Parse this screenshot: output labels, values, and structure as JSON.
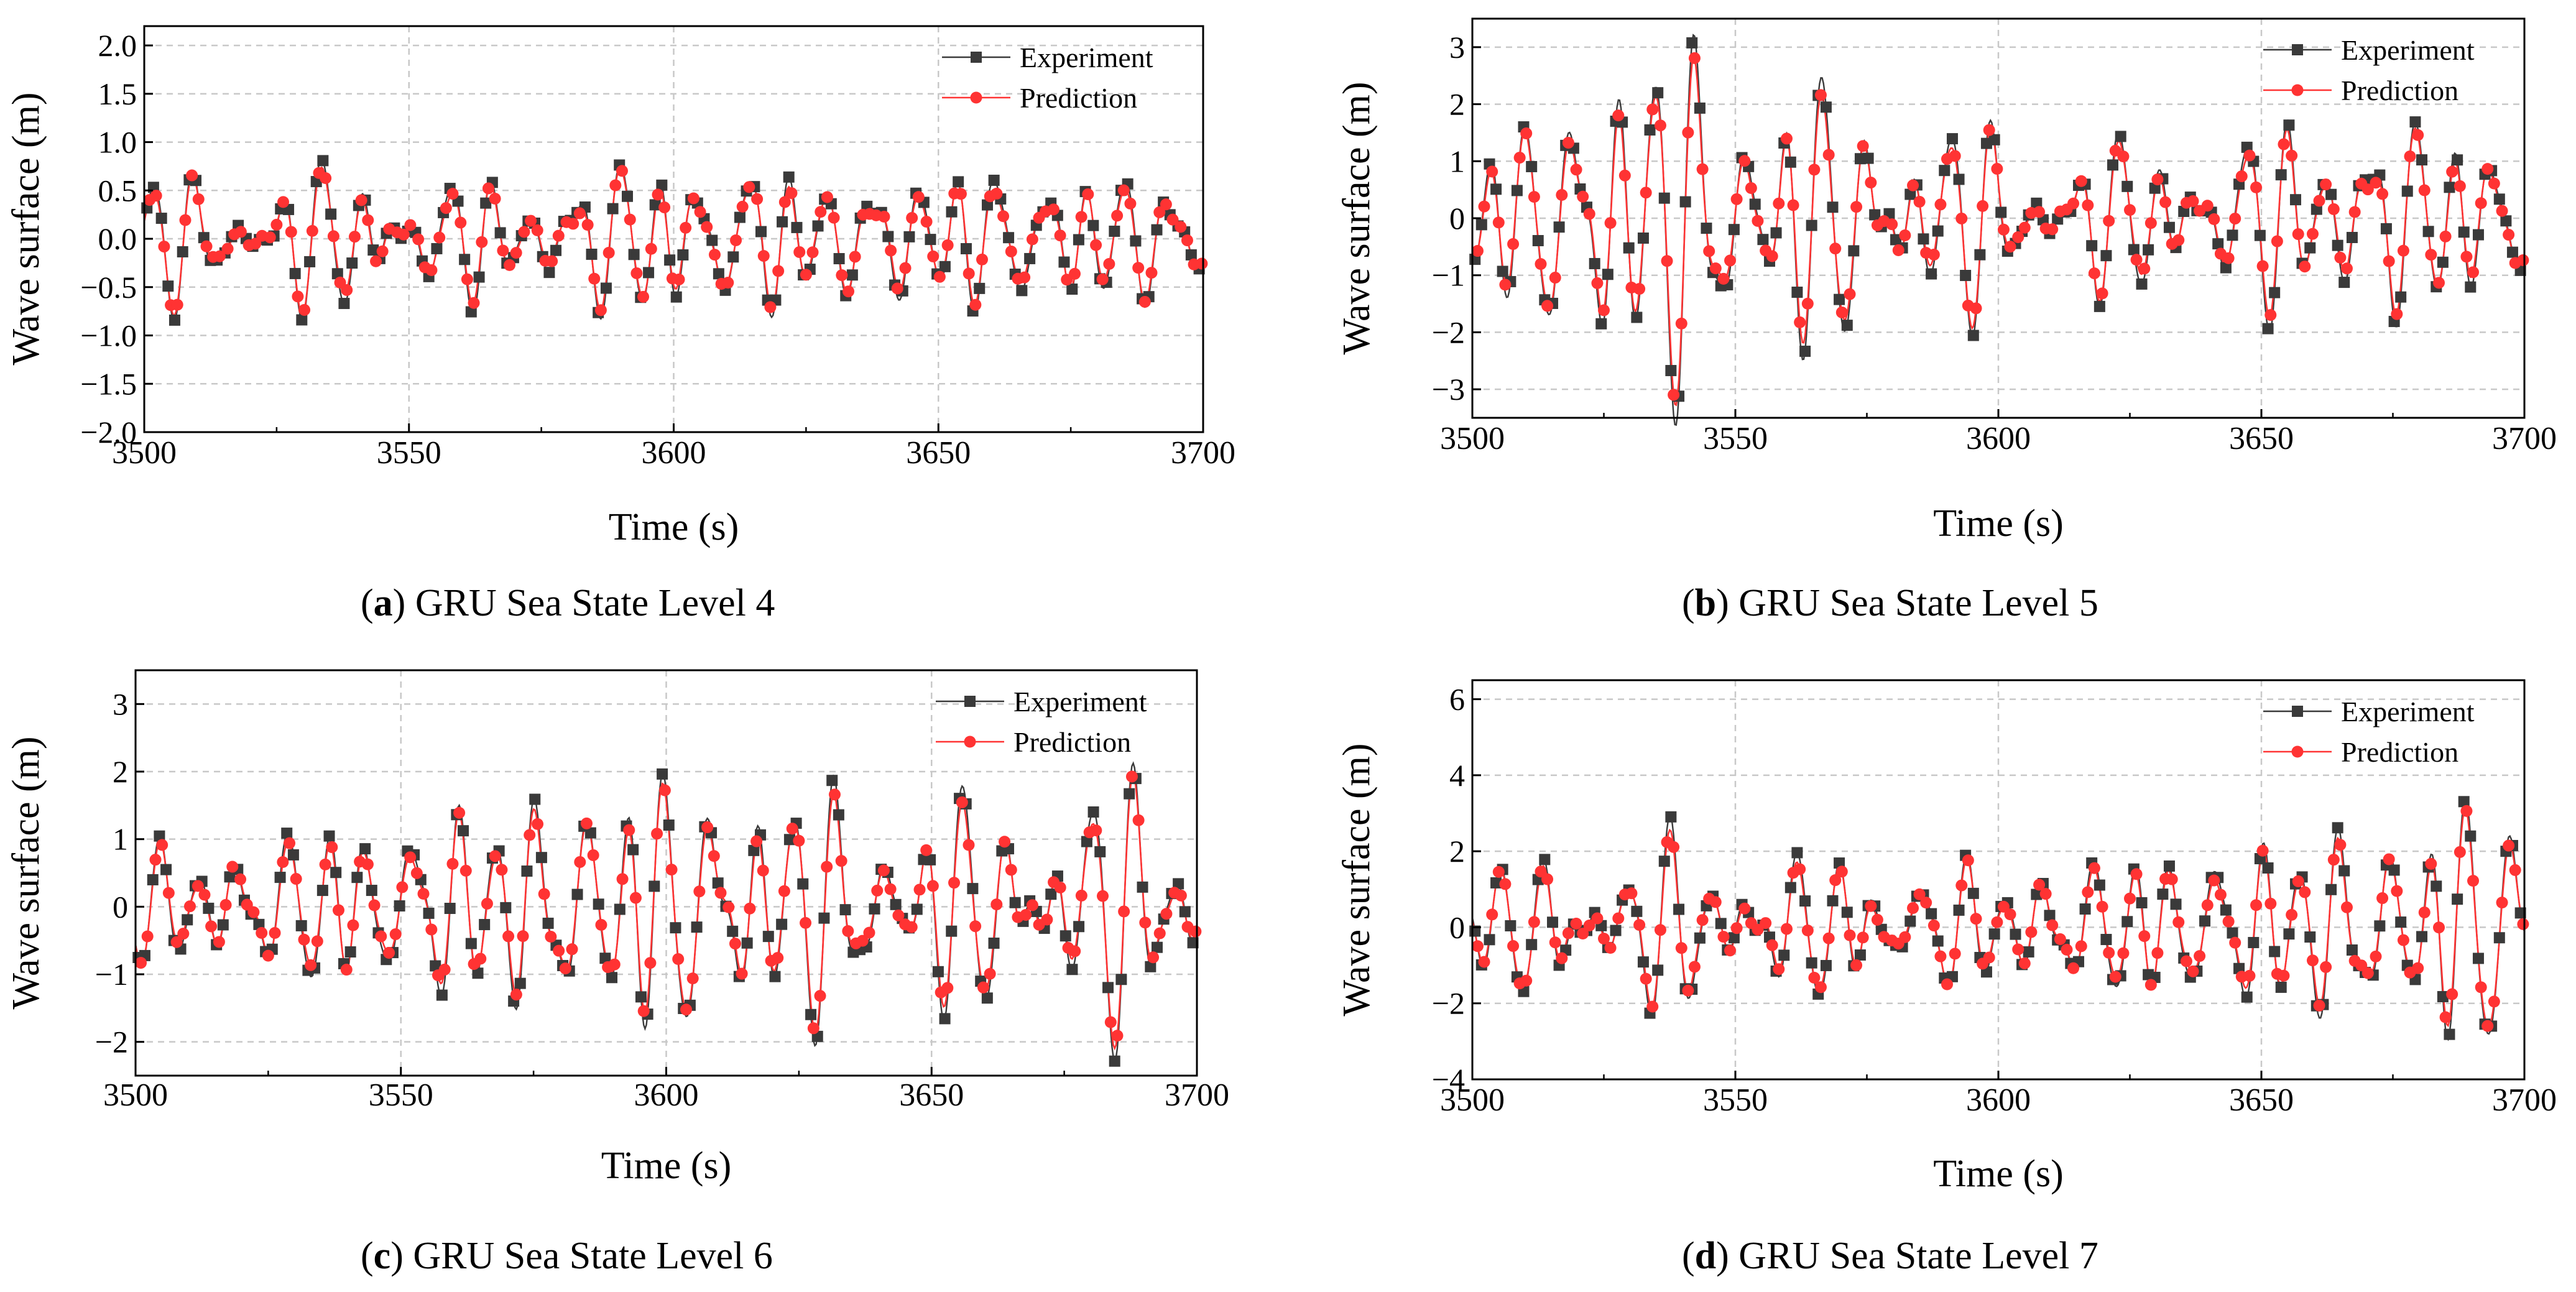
{
  "figure": {
    "colors": {
      "experiment": "#3a3a3a",
      "prediction": "#ff3333",
      "grid": "#c8c8c8",
      "axis": "#000000"
    },
    "legend": {
      "experiment": "Experiment",
      "prediction": "Prediction"
    }
  },
  "chart_data": [
    {
      "type": "line",
      "panel_letter": "a",
      "caption_text": "GRU Sea State Level 4",
      "xlabel": "Time (s)",
      "ylabel": "Wave surface (m)",
      "xlim": [
        3500,
        3700
      ],
      "ylim": [
        -2.0,
        2.2
      ],
      "xticks": [
        3500,
        3550,
        3600,
        3650,
        3700
      ],
      "xtick_labels": [
        "3500",
        "3550",
        "3600",
        "3650",
        "3700"
      ],
      "yticks": [
        -2.0,
        -1.5,
        -1.0,
        -0.5,
        0.0,
        0.5,
        1.0,
        1.5,
        2.0
      ],
      "ytick_labels": [
        "−2.0",
        "−1.5",
        "−1.0",
        "−0.5",
        "0.0",
        "0.5",
        "1.0",
        "1.5",
        "2.0"
      ],
      "legend_position": "top-right",
      "grid": true,
      "wave": {
        "amplitude": 0.62,
        "envelope": [
          0.85,
          1.0,
          0.8,
          1.15,
          0.9,
          1.05,
          0.75
        ],
        "seed": 1
      },
      "series": [
        {
          "name": "Experiment",
          "marker": "square",
          "sample_count": 150
        },
        {
          "name": "Prediction",
          "marker": "circle",
          "sample_count": 150
        }
      ]
    },
    {
      "type": "line",
      "panel_letter": "b",
      "caption_text": "GRU Sea State Level 5",
      "xlabel": "Time (s)",
      "ylabel": "Wave surface (m)",
      "xlim": [
        3500,
        3700
      ],
      "ylim": [
        -3.5,
        3.5
      ],
      "xticks": [
        3500,
        3550,
        3600,
        3650,
        3700
      ],
      "xtick_labels": [
        "3500",
        "3550",
        "3600",
        "3650",
        "3700"
      ],
      "yticks": [
        -3,
        -2,
        -1,
        0,
        1,
        2,
        3
      ],
      "ytick_labels": [
        "−3",
        "−2",
        "−1",
        "0",
        "1",
        "2",
        "3"
      ],
      "legend_position": "top-right",
      "grid": true,
      "wave": {
        "amplitude": 1.15,
        "envelope": [
          0.8,
          2.4,
          1.6,
          1.1,
          0.9,
          1.4,
          1.0
        ],
        "seed": 2
      },
      "series": [
        {
          "name": "Experiment",
          "marker": "square",
          "sample_count": 150
        },
        {
          "name": "Prediction",
          "marker": "circle",
          "sample_count": 150
        }
      ]
    },
    {
      "type": "line",
      "panel_letter": "c",
      "caption_text": "GRU Sea State Level 6",
      "xlabel": "Time (s)",
      "ylabel": "Wave surface (m)",
      "xlim": [
        3500,
        3700
      ],
      "ylim": [
        -2.5,
        3.5
      ],
      "xticks": [
        3500,
        3550,
        3600,
        3650,
        3700
      ],
      "xtick_labels": [
        "3500",
        "3550",
        "3600",
        "3650",
        "3700"
      ],
      "yticks": [
        -2,
        -1,
        0,
        1,
        2,
        3
      ],
      "ytick_labels": [
        "−2",
        "−1",
        "0",
        "1",
        "2",
        "3"
      ],
      "legend_position": "top-right",
      "grid": true,
      "wave": {
        "amplitude": 1.1,
        "envelope": [
          0.6,
          0.9,
          1.2,
          1.5,
          1.3,
          1.1,
          1.6
        ],
        "seed": 3
      },
      "series": [
        {
          "name": "Experiment",
          "marker": "square",
          "sample_count": 150
        },
        {
          "name": "Prediction",
          "marker": "circle",
          "sample_count": 150
        }
      ]
    },
    {
      "type": "line",
      "panel_letter": "d",
      "caption_text": "GRU Sea State Level 7",
      "xlabel": "Time (s)",
      "ylabel": "Wave surface (m)",
      "xlim": [
        3500,
        3700
      ],
      "ylim": [
        -4,
        6.5
      ],
      "xticks": [
        3500,
        3550,
        3600,
        3650,
        3700
      ],
      "xtick_labels": [
        "3500",
        "3550",
        "3600",
        "3650",
        "3700"
      ],
      "yticks": [
        -4,
        -2,
        0,
        2,
        4,
        6
      ],
      "ytick_labels": [
        "−4",
        "−2",
        "0",
        "2",
        "4",
        "6"
      ],
      "legend_position": "top-right",
      "grid": true,
      "wave": {
        "amplitude": 1.45,
        "envelope": [
          0.8,
          1.3,
          1.0,
          0.9,
          1.2,
          1.5,
          2.0
        ],
        "seed": 4
      },
      "series": [
        {
          "name": "Experiment",
          "marker": "square",
          "sample_count": 150
        },
        {
          "name": "Prediction",
          "marker": "circle",
          "sample_count": 150
        }
      ]
    }
  ]
}
